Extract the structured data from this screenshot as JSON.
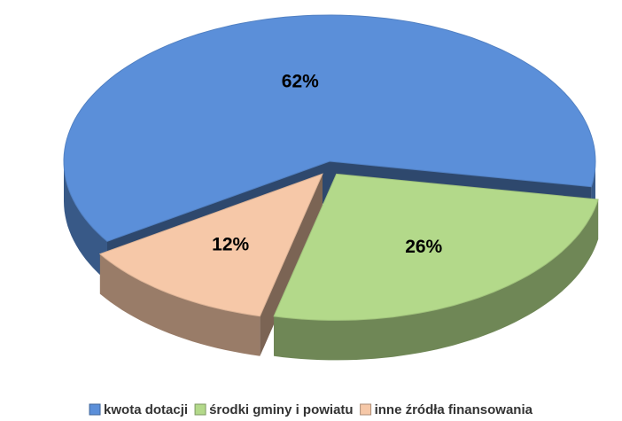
{
  "chart_data": {
    "type": "pie",
    "categories": [
      "kwota dotacji",
      "środki gminy i powiatu",
      "inne źródła finansowania"
    ],
    "values": [
      62,
      26,
      12
    ],
    "value_labels": [
      "62%",
      "26%",
      "12%"
    ],
    "colors": [
      "#5b8fd9",
      "#b3d98a",
      "#f6c8a8"
    ]
  }
}
